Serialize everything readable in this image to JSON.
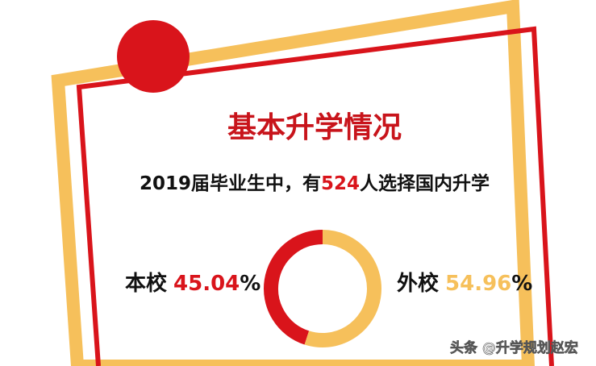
{
  "chart_data": {
    "type": "donut",
    "title": "基本升学情况",
    "subtitle": {
      "before": "2019届毕业生中，有",
      "number": 524,
      "after": "人选择国内升学"
    },
    "categories": [
      "本校",
      "外校"
    ],
    "values": [
      45.04,
      54.96
    ],
    "unit": "%",
    "colors": [
      "#d9141b",
      "#f6c05b"
    ]
  },
  "watermark": "头条 @升学规划赵宏"
}
